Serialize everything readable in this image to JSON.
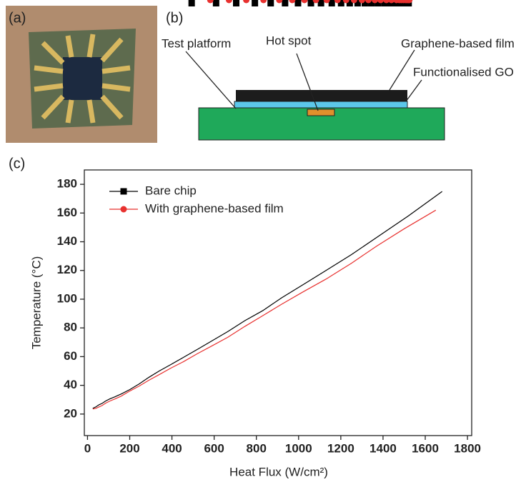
{
  "panels": {
    "a": "(a)",
    "b": "(b)",
    "c": "(c)"
  },
  "diagram": {
    "labels": [
      "Test platform",
      "Hot spot",
      "Graphene-based film",
      "Functionalised GO"
    ]
  },
  "chart_data": {
    "type": "line",
    "xlabel": "Heat Flux (W/cm²)",
    "ylabel": "Temperature (°C)",
    "xlim": [
      -15,
      1820
    ],
    "ylim": [
      5,
      190
    ],
    "xticks": [
      0,
      200,
      400,
      600,
      800,
      1000,
      1200,
      1400,
      1600,
      1800
    ],
    "yticks": [
      20,
      40,
      60,
      80,
      100,
      120,
      140,
      160,
      180
    ],
    "legend": "upper left",
    "series": [
      {
        "name": "Bare chip",
        "color": "#000000",
        "marker": "square",
        "x": [
          25,
          40,
          55,
          70,
          85,
          105,
          130,
          160,
          200,
          245,
          290,
          340,
          395,
          455,
          520,
          590,
          665,
          745,
          830,
          920,
          1020,
          1130,
          1250,
          1380,
          1520,
          1680
        ],
        "values": [
          24,
          25,
          26.5,
          27.5,
          29,
          30.5,
          32,
          34,
          37,
          41,
          45.5,
          50,
          54.5,
          59.5,
          65,
          71,
          77.5,
          85,
          92,
          101,
          110,
          120,
          131,
          144,
          158,
          175
        ]
      },
      {
        "name": "With graphene-based film",
        "color": "#e8312f",
        "marker": "circle",
        "x": [
          25,
          40,
          55,
          70,
          85,
          105,
          130,
          160,
          200,
          245,
          290,
          340,
          395,
          455,
          520,
          590,
          665,
          745,
          830,
          920,
          1020,
          1130,
          1250,
          1370,
          1500,
          1650
        ],
        "values": [
          23.5,
          24,
          25,
          26,
          27.5,
          29,
          30.5,
          32.5,
          36,
          39.5,
          43.5,
          47.5,
          52,
          56.5,
          62,
          67.5,
          73.5,
          81,
          88.5,
          96.5,
          105,
          114,
          125,
          137,
          149,
          162
        ]
      }
    ]
  }
}
